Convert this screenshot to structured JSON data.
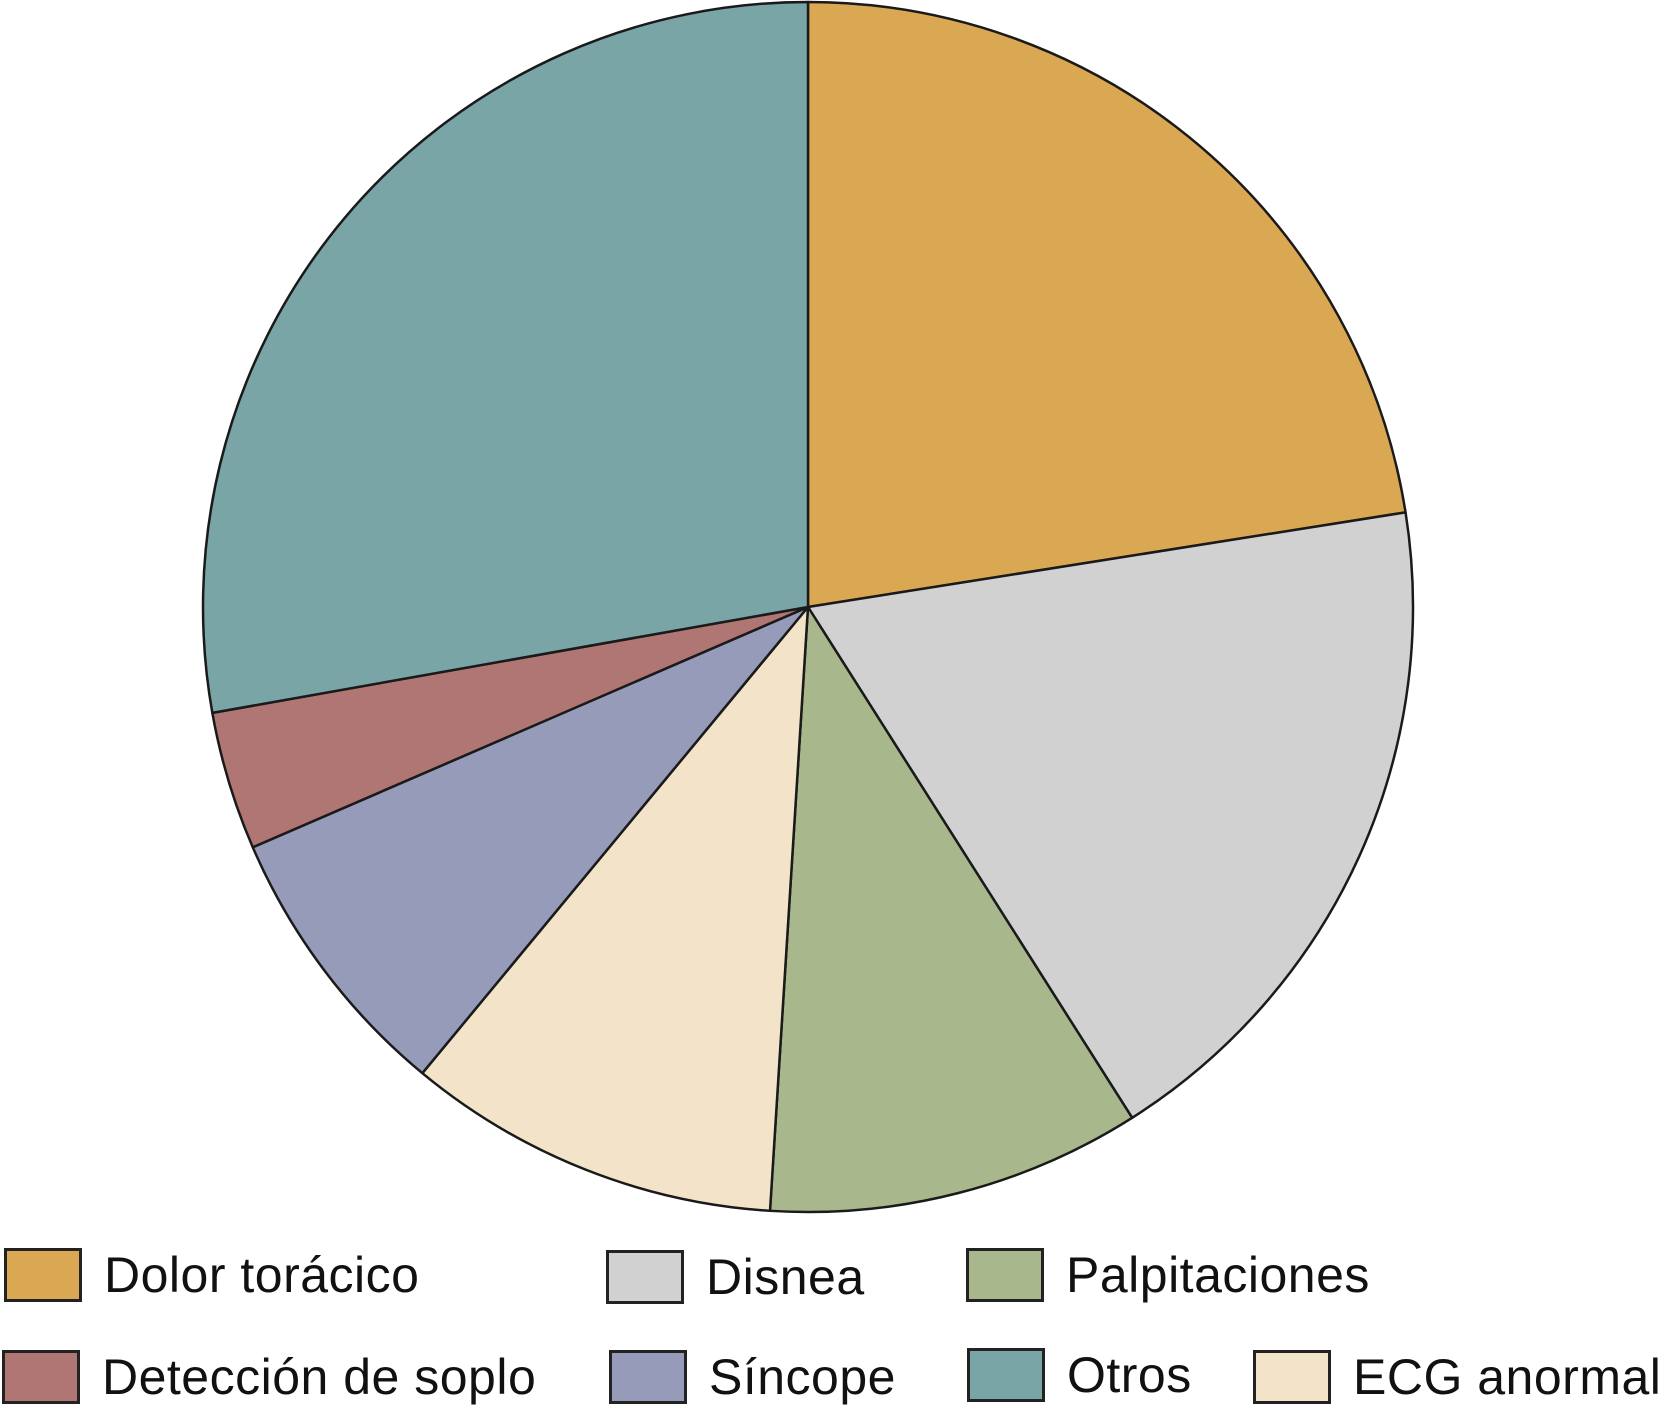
{
  "chart_data": {
    "type": "pie",
    "start": "12 o'clock",
    "direction": "clockwise",
    "slices": [
      {
        "label": "Dolor torácico",
        "value": 22.5,
        "color": "#DAA853"
      },
      {
        "label": "Disnea",
        "value": 18.5,
        "color": "#D1D1D1"
      },
      {
        "label": "Palpitaciones",
        "value": 10.0,
        "color": "#A8B88C"
      },
      {
        "label": "ECG anormal",
        "value": 10.0,
        "color": "#F3E4C9"
      },
      {
        "label": "Síncope",
        "value": 7.5,
        "color": "#979BBA"
      },
      {
        "label": "Detección de soplo",
        "value": 3.7,
        "color": "#B07673"
      },
      {
        "label": "Otros",
        "value": 27.8,
        "color": "#7AA5A7"
      }
    ],
    "legend": {
      "placement": "bottom",
      "rows": [
        [
          "Dolor torácico",
          "Disnea",
          "Palpitaciones"
        ],
        [
          "Detección de soplo",
          "Síncope",
          "Otros",
          "ECG anormal"
        ]
      ]
    }
  },
  "legend": {
    "items": [
      {
        "label": "Dolor torácico",
        "color": "#DAA853"
      },
      {
        "label": "Disnea",
        "color": "#D1D1D1"
      },
      {
        "label": "Palpitaciones",
        "color": "#A8B88C"
      },
      {
        "label": "Detección de soplo",
        "color": "#B07673"
      },
      {
        "label": "Síncope",
        "color": "#979BBA"
      },
      {
        "label": "Otros",
        "color": "#7AA5A7"
      },
      {
        "label": "ECG anormal",
        "color": "#F3E4C9"
      }
    ]
  }
}
